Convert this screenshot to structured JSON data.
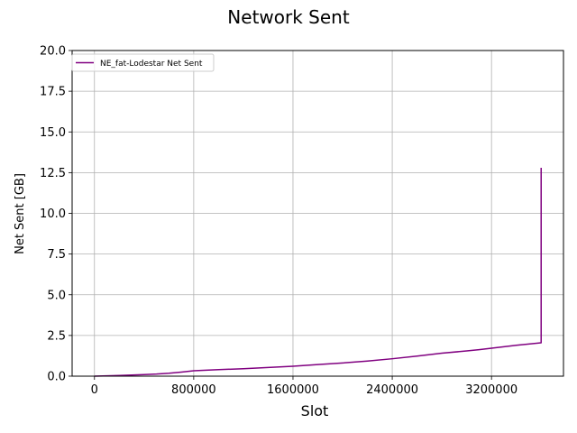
{
  "chart_data": {
    "type": "line",
    "title": "Network Sent",
    "xlabel": "Slot",
    "ylabel": "Net Sent [GB]",
    "xlim": [
      -180000,
      3780000
    ],
    "ylim": [
      0,
      20
    ],
    "xticks": [
      0,
      800000,
      1600000,
      2400000,
      3200000
    ],
    "xtick_labels": [
      "0",
      "800000",
      "1600000",
      "2400000",
      "3200000"
    ],
    "yticks": [
      0,
      2.5,
      5,
      7.5,
      10,
      12.5,
      15,
      17.5,
      20
    ],
    "ytick_labels": [
      "0.0",
      "2.5",
      "5.0",
      "7.5",
      "10.0",
      "12.5",
      "15.0",
      "17.5",
      "20.0"
    ],
    "grid": true,
    "legend_position": "top-left",
    "series": [
      {
        "name": "NE_fat-Lodestar Net Sent",
        "color": "#800080",
        "x": [
          0,
          200000,
          400000,
          500000,
          600000,
          700000,
          800000,
          900000,
          1000000,
          1200000,
          1400000,
          1600000,
          1800000,
          2000000,
          2200000,
          2400000,
          2600000,
          2800000,
          3000000,
          3100000,
          3200000,
          3400000,
          3600000,
          3600000
        ],
        "y": [
          0.0,
          0.04,
          0.1,
          0.13,
          0.18,
          0.25,
          0.33,
          0.37,
          0.4,
          0.46,
          0.53,
          0.61,
          0.71,
          0.81,
          0.93,
          1.07,
          1.23,
          1.41,
          1.55,
          1.63,
          1.72,
          1.9,
          2.05,
          12.8
        ]
      }
    ]
  }
}
